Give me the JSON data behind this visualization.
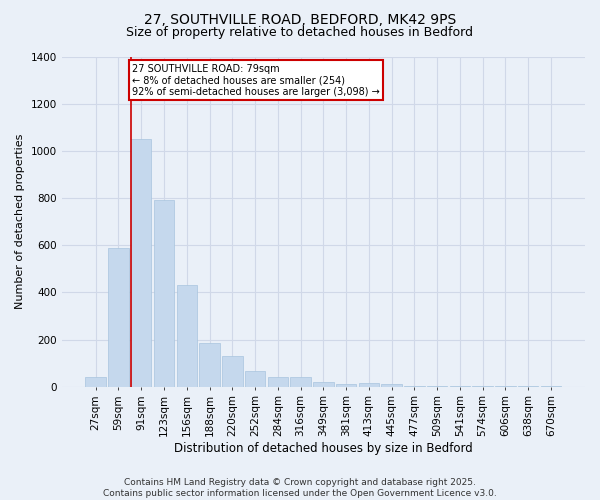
{
  "title1": "27, SOUTHVILLE ROAD, BEDFORD, MK42 9PS",
  "title2": "Size of property relative to detached houses in Bedford",
  "xlabel": "Distribution of detached houses by size in Bedford",
  "ylabel": "Number of detached properties",
  "bar_labels": [
    "27sqm",
    "59sqm",
    "91sqm",
    "123sqm",
    "156sqm",
    "188sqm",
    "220sqm",
    "252sqm",
    "284sqm",
    "316sqm",
    "349sqm",
    "381sqm",
    "413sqm",
    "445sqm",
    "477sqm",
    "509sqm",
    "541sqm",
    "574sqm",
    "606sqm",
    "638sqm",
    "670sqm"
  ],
  "bar_values": [
    40,
    590,
    1050,
    790,
    430,
    185,
    130,
    65,
    40,
    40,
    20,
    10,
    15,
    10,
    5,
    3,
    2,
    2,
    1,
    1,
    1
  ],
  "bar_color": "#c5d8ed",
  "bar_edge_color": "#a8c4de",
  "vline_color": "#cc0000",
  "annotation_text": "27 SOUTHVILLE ROAD: 79sqm\n← 8% of detached houses are smaller (254)\n92% of semi-detached houses are larger (3,098) →",
  "annotation_box_color": "#ffffff",
  "annotation_box_edge": "#cc0000",
  "ylim": [
    0,
    1400
  ],
  "yticks": [
    0,
    200,
    400,
    600,
    800,
    1000,
    1200,
    1400
  ],
  "grid_color": "#d0d8e8",
  "bg_color": "#eaf0f8",
  "footer": "Contains HM Land Registry data © Crown copyright and database right 2025.\nContains public sector information licensed under the Open Government Licence v3.0.",
  "title1_fontsize": 10,
  "title2_fontsize": 9,
  "xlabel_fontsize": 8.5,
  "ylabel_fontsize": 8,
  "footer_fontsize": 6.5,
  "tick_fontsize": 7.5,
  "annot_fontsize": 7
}
